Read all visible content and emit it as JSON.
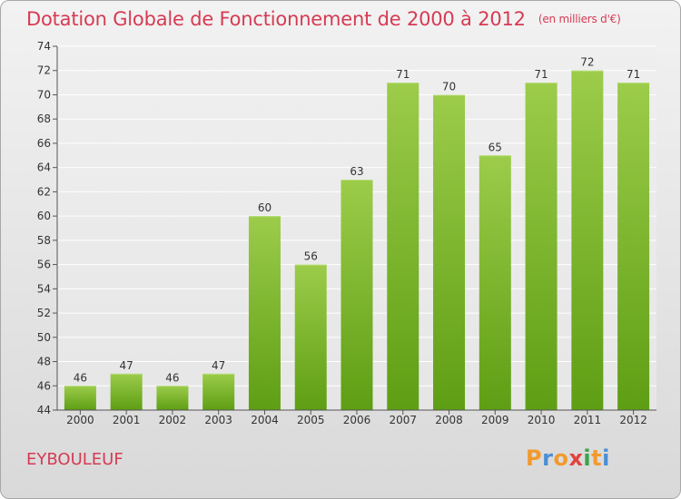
{
  "header": {
    "title": "Dotation Globale de Fonctionnement de 2000 à 2012",
    "unit": "(en milliers d'€)"
  },
  "commune": "EYBOULEUF",
  "logo": {
    "text": "Proxiti",
    "letter_colors": [
      "#f29a2e",
      "#4a8fd6",
      "#f29a2e",
      "#e2423f",
      "#3aa34a",
      "#f29a2e",
      "#4a8fd6"
    ]
  },
  "colors": {
    "title": "#d63b53",
    "bar_top": "#9ccc4a",
    "bar_bottom": "#5e9e14"
  },
  "chart_data": {
    "type": "bar",
    "title": "Dotation Globale de Fonctionnement de 2000 à 2012",
    "subtitle": "(en milliers d'€)",
    "categories": [
      "2000",
      "2001",
      "2002",
      "2003",
      "2004",
      "2005",
      "2006",
      "2007",
      "2008",
      "2009",
      "2010",
      "2011",
      "2012"
    ],
    "values": [
      46,
      47,
      46,
      47,
      60,
      56,
      63,
      71,
      70,
      65,
      71,
      72,
      71
    ],
    "data_labels": [
      "46",
      "47",
      "46",
      "47",
      "60",
      "56",
      "63",
      "71",
      "70",
      "65",
      "71",
      "72",
      "71"
    ],
    "ylim": [
      44,
      74
    ],
    "yticks": [
      44,
      46,
      48,
      50,
      52,
      54,
      56,
      58,
      60,
      62,
      64,
      66,
      68,
      70,
      72,
      74
    ],
    "grid": true
  }
}
